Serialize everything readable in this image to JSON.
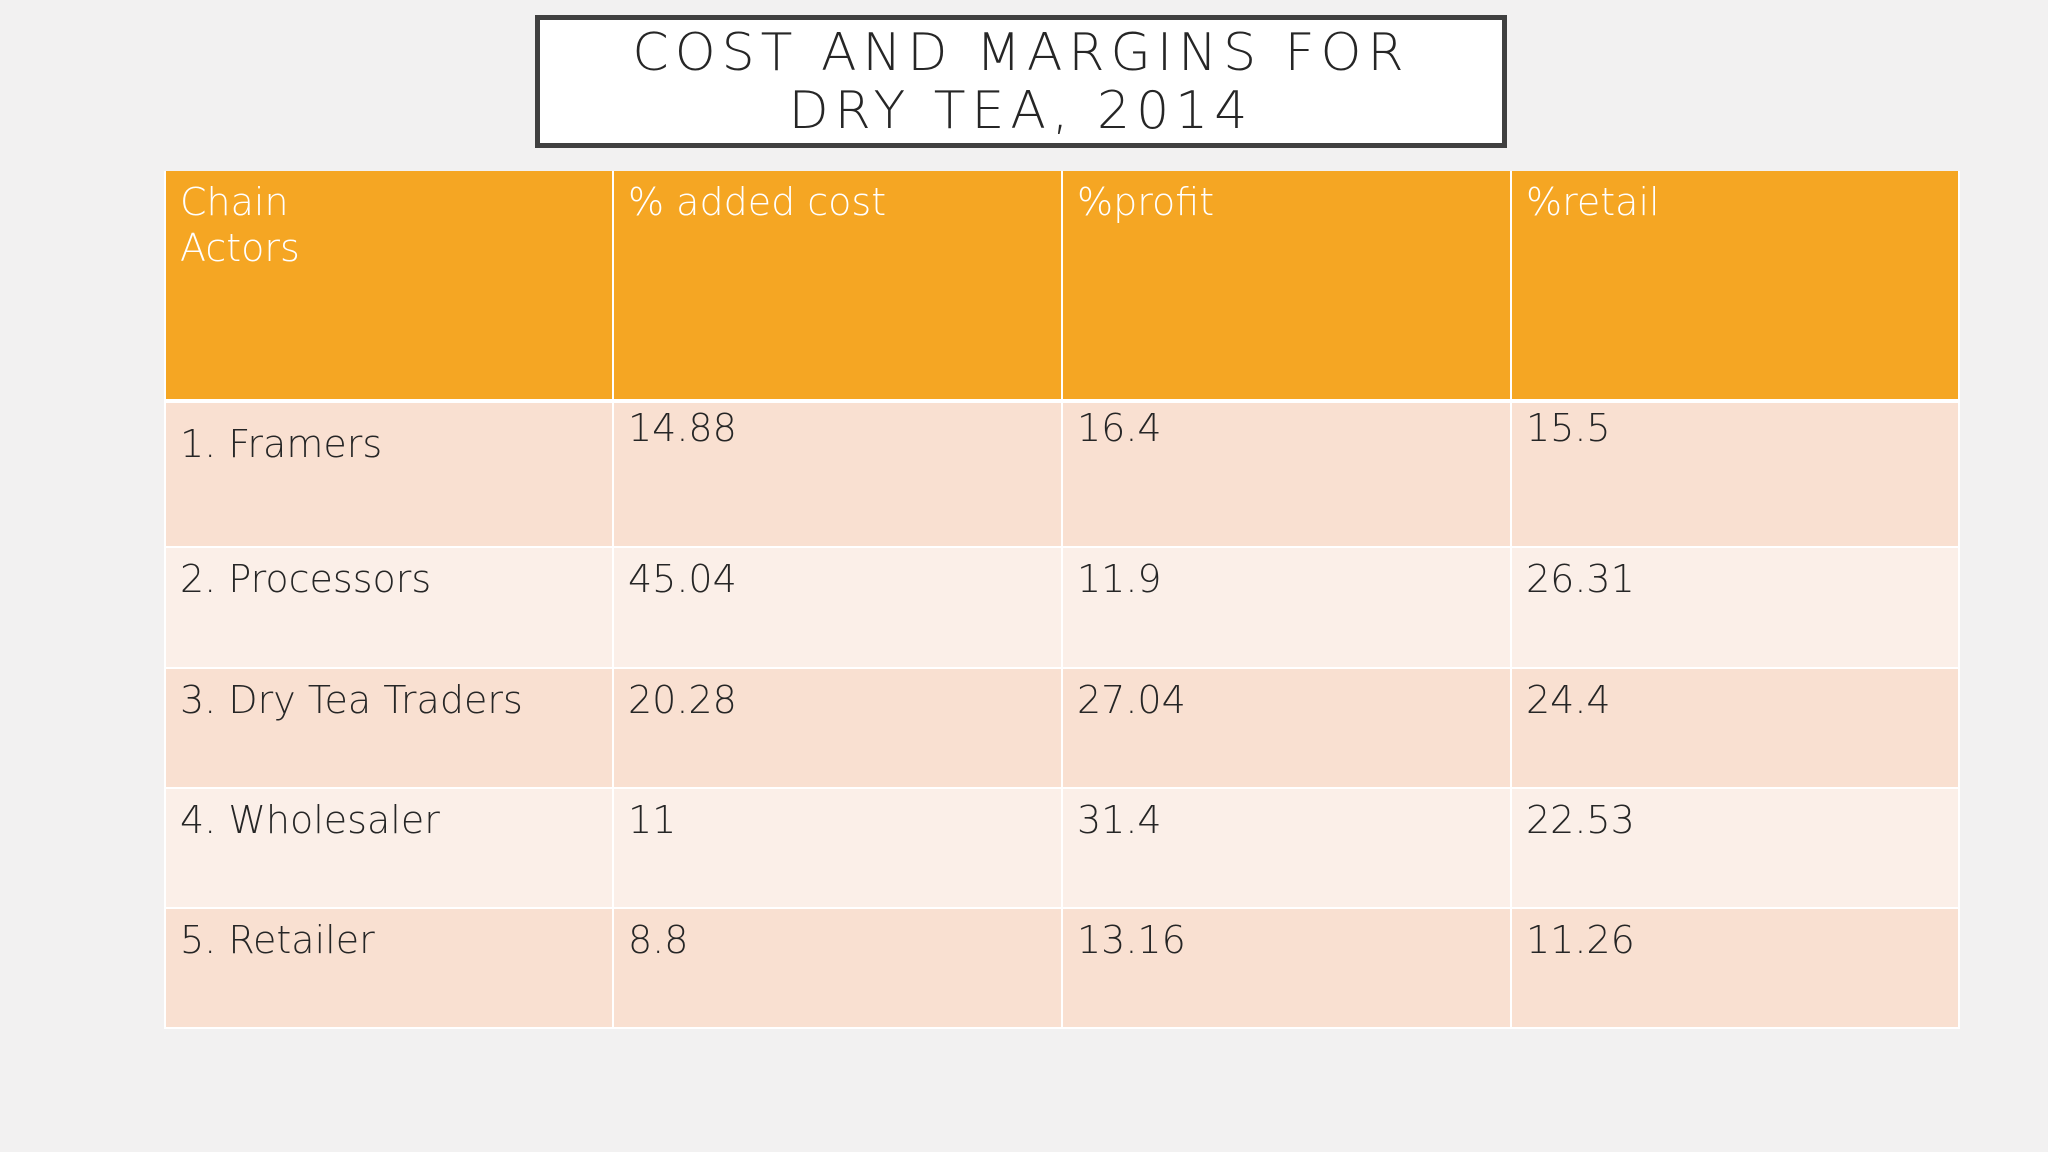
{
  "slide": {
    "title": "COST AND MARGINS FOR DRY TEA, 2014"
  },
  "table": {
    "headers": [
      "Chain Actors",
      "% added cost",
      "%profit",
      "%retail"
    ],
    "rows": [
      {
        "actor": "1. Framers",
        "added_cost": "14.88",
        "profit": "16.4",
        "retail": "15.5"
      },
      {
        "actor": "2. Processors",
        "added_cost": "45.04",
        "profit": "11.9",
        "retail": "26.31"
      },
      {
        "actor": "3. Dry Tea Traders",
        "added_cost": "20.28",
        "profit": "27.04",
        "retail": "24.4"
      },
      {
        "actor": "4. Wholesaler",
        "added_cost": "11",
        "profit": "31.4",
        "retail": "22.53"
      },
      {
        "actor": "5. Retailer",
        "added_cost": "8.8",
        "profit": "13.16",
        "retail": "11.26"
      }
    ]
  },
  "colors": {
    "header_fill": "#f5a623",
    "row_band_dark": "#f9e0d1",
    "row_band_light": "#fbefe8",
    "background": "#f2f1f1",
    "title_border": "#404040"
  }
}
